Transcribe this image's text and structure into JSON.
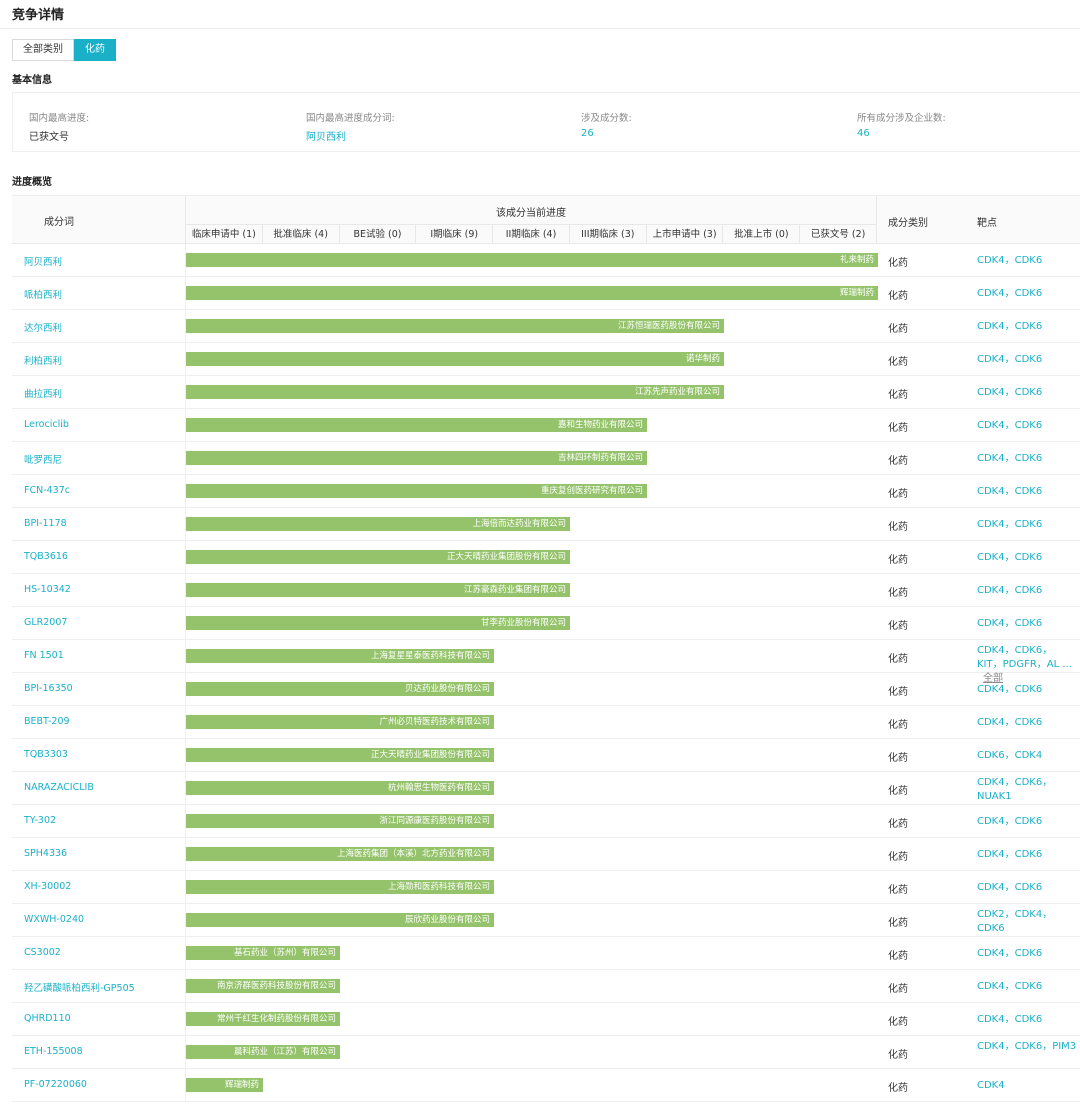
{
  "page_title": "竞争详情",
  "tabs": [
    "全部类别",
    "化药"
  ],
  "basic_info": {
    "title": "基本信息",
    "items": [
      {
        "label": "国内最高进度:",
        "value": "已获文号"
      },
      {
        "label": "国内最高进度成分词:",
        "value": "阿贝西利"
      },
      {
        "label": "涉及成分数:",
        "value": "26"
      },
      {
        "label": "所有成分涉及企业数:",
        "value": "46"
      }
    ]
  },
  "progress_overview": {
    "title": "进度概览",
    "headers": {
      "ingredient": "成分词",
      "stage_title": "该成分当前进度",
      "category": "成分类别",
      "target": "靶点"
    },
    "stages": [
      "临床申请中 (1)",
      "批准临床 (4)",
      "BE试验 (0)",
      "I期临床 (9)",
      "II期临床 (4)",
      "III期临床 (3)",
      "上市申请中 (3)",
      "批准上市 (0)",
      "已获文号 (2)"
    ],
    "rows": [
      {
        "name": "阿贝西利",
        "stage_level": 9,
        "company": "礼来制药",
        "category": "化药",
        "targets": "CDK4，CDK6"
      },
      {
        "name": "哌柏西利",
        "stage_level": 9,
        "company": "辉瑞制药",
        "category": "化药",
        "targets": "CDK4，CDK6"
      },
      {
        "name": "达尔西利",
        "stage_level": 7,
        "company": "江苏恒瑞医药股份有限公司",
        "category": "化药",
        "targets": "CDK4，CDK6"
      },
      {
        "name": "利柏西利",
        "stage_level": 7,
        "company": "诺华制药",
        "category": "化药",
        "targets": "CDK4，CDK6"
      },
      {
        "name": "曲拉西利",
        "stage_level": 7,
        "company": "江苏先声药业有限公司",
        "category": "化药",
        "targets": "CDK4，CDK6"
      },
      {
        "name": "Lerociclib",
        "stage_level": 6,
        "company": "嘉和生物药业有限公司",
        "category": "化药",
        "targets": "CDK4，CDK6"
      },
      {
        "name": "吡罗西尼",
        "stage_level": 6,
        "company": "吉林四环制药有限公司",
        "category": "化药",
        "targets": "CDK4，CDK6"
      },
      {
        "name": "FCN-437c",
        "stage_level": 6,
        "company": "重庆复创医药研究有限公司",
        "category": "化药",
        "targets": "CDK4，CDK6"
      },
      {
        "name": "BPI-1178",
        "stage_level": 5,
        "company": "上海倍而达药业有限公司",
        "category": "化药",
        "targets": "CDK4，CDK6"
      },
      {
        "name": "TQB3616",
        "stage_level": 5,
        "company": "正大天晴药业集团股份有限公司",
        "category": "化药",
        "targets": "CDK4，CDK6"
      },
      {
        "name": "HS-10342",
        "stage_level": 5,
        "company": "江苏豪森药业集团有限公司",
        "category": "化药",
        "targets": "CDK4，CDK6"
      },
      {
        "name": "GLR2007",
        "stage_level": 5,
        "company": "甘李药业股份有限公司",
        "category": "化药",
        "targets": "CDK4，CDK6"
      },
      {
        "name": "FN 1501",
        "stage_level": 4,
        "company": "上海复星星泰医药科技有限公司",
        "category": "化药",
        "targets": "CDK4，CDK6，KIT，PDGFR，AL ...",
        "more": "全部"
      },
      {
        "name": "BPI-16350",
        "stage_level": 4,
        "company": "贝达药业股份有限公司",
        "category": "化药",
        "targets": "CDK4，CDK6"
      },
      {
        "name": "BEBT-209",
        "stage_level": 4,
        "company": "广州必贝特医药技术有限公司",
        "category": "化药",
        "targets": "CDK4，CDK6"
      },
      {
        "name": "TQB3303",
        "stage_level": 4,
        "company": "正大天晴药业集团股份有限公司",
        "category": "化药",
        "targets": "CDK6，CDK4"
      },
      {
        "name": "NARAZACICLIB",
        "stage_level": 4,
        "company": "杭州翰思生物医药有限公司",
        "category": "化药",
        "targets": "CDK4，CDK6，NUAK1"
      },
      {
        "name": "TY-302",
        "stage_level": 4,
        "company": "浙江同源康医药股份有限公司",
        "category": "化药",
        "targets": "CDK4，CDK6"
      },
      {
        "name": "SPH4336",
        "stage_level": 4,
        "company": "上海医药集团（本溪）北方药业有限公司",
        "category": "化药",
        "targets": "CDK4，CDK6"
      },
      {
        "name": "XH-30002",
        "stage_level": 4,
        "company": "上海勋和医药科技有限公司",
        "category": "化药",
        "targets": "CDK4，CDK6"
      },
      {
        "name": "WXWH-0240",
        "stage_level": 4,
        "company": "辰欣药业股份有限公司",
        "category": "化药",
        "targets": "CDK2，CDK4，CDK6"
      },
      {
        "name": "CS3002",
        "stage_level": 2,
        "company": "基石药业（苏州）有限公司",
        "category": "化药",
        "targets": "CDK4，CDK6"
      },
      {
        "name": "羟乙磺酸哌柏西利-GP505",
        "stage_level": 2,
        "company": "南京济群医药科技股份有限公司",
        "category": "化药",
        "targets": "CDK4，CDK6"
      },
      {
        "name": "QHRD110",
        "stage_level": 2,
        "company": "常州千红生化制药股份有限公司",
        "category": "化药",
        "targets": "CDK4，CDK6"
      },
      {
        "name": "ETH-155008",
        "stage_level": 2,
        "company": "晨科药业（江苏）有限公司",
        "category": "化药",
        "targets": "CDK4，CDK6，PIM3"
      },
      {
        "name": "PF-07220060",
        "stage_level": 1,
        "company": "辉瑞制药",
        "category": "化药",
        "targets": "CDK4"
      }
    ]
  }
}
